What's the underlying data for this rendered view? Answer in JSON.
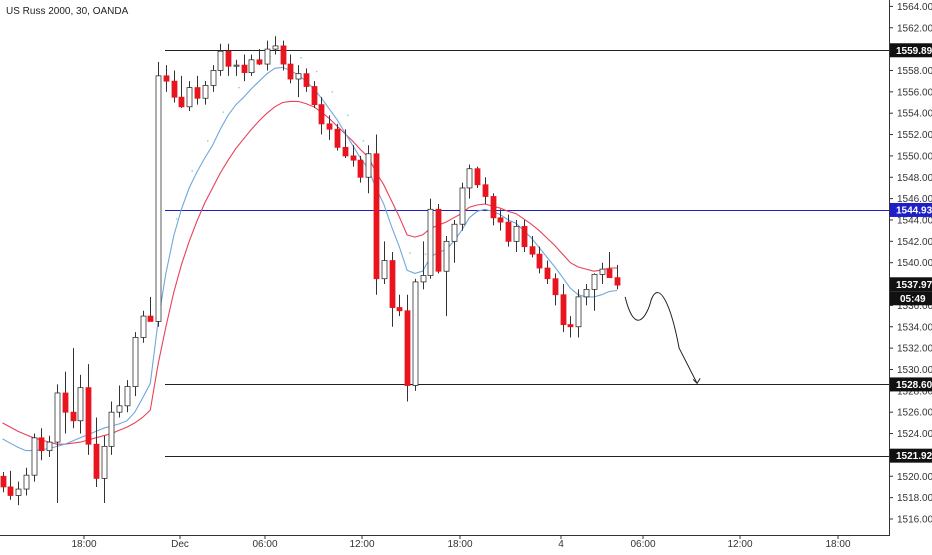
{
  "chart_data": {
    "type": "candlestick",
    "title": "US Russ 2000, 30, OANDA",
    "symbol": "US Russ 2000",
    "timeframe": "30",
    "source": "OANDA",
    "ylim": [
      1514.5,
      1564.6
    ],
    "y_ticks": [
      "1516.000",
      "1518.000",
      "1520.000",
      "1522.000",
      "1524.000",
      "1526.000",
      "1528.000",
      "1530.000",
      "1532.000",
      "1534.000",
      "1536.000",
      "1538.000",
      "1540.000",
      "1542.000",
      "1544.000",
      "1546.000",
      "1548.000",
      "1550.000",
      "1552.000",
      "1554.000",
      "1556.000",
      "1558.000",
      "1560.000",
      "1562.000",
      "1564.000"
    ],
    "x_ticks": [
      "18:00",
      "Dec",
      "06:00",
      "12:00",
      "18:00",
      "4",
      "06:00",
      "12:00",
      "18:00"
    ],
    "horizontal_levels": [
      {
        "price": 1559.893,
        "label": "1559.893",
        "color": "#222222"
      },
      {
        "price": 1544.938,
        "label": "1544.938",
        "color": "#1f1fc8"
      },
      {
        "price": 1528.601,
        "label": "1528.601",
        "color": "#222222"
      },
      {
        "price": 1521.929,
        "label": "1521.929",
        "color": "#222222"
      }
    ],
    "last_price": {
      "label": "1537.978",
      "price": 1537.978
    },
    "countdown": "05:49",
    "colors": {
      "up_body": "#ffffff",
      "down_body": "#e8141e",
      "wick": "#333333",
      "ma_fast": "#6fa8dc",
      "ma_slow": "#e8415a",
      "ma_dots": "#7fd6b8",
      "blue_level": "#1f1fc8",
      "label_bg": "#111111"
    },
    "candles": [
      [
        1520.0,
        1520.4,
        1518.5,
        1519.0
      ],
      [
        1519.0,
        1520.5,
        1517.8,
        1518.2
      ],
      [
        1518.2,
        1519.5,
        1517.3,
        1518.8
      ],
      [
        1518.8,
        1520.8,
        1518.2,
        1520.1
      ],
      [
        1520.1,
        1524.0,
        1519.5,
        1523.6
      ],
      [
        1523.6,
        1524.5,
        1521.5,
        1522.4
      ],
      [
        1522.4,
        1523.8,
        1521.8,
        1523.2
      ],
      [
        1523.2,
        1528.6,
        1517.5,
        1527.8
      ],
      [
        1527.8,
        1529.8,
        1524.0,
        1526.0
      ],
      [
        1526.0,
        1532.0,
        1524.5,
        1525.2
      ],
      [
        1525.2,
        1529.5,
        1524.0,
        1528.3
      ],
      [
        1528.3,
        1530.5,
        1522.0,
        1523.0
      ],
      [
        1523.0,
        1525.5,
        1519.0,
        1519.8
      ],
      [
        1519.8,
        1523.8,
        1517.5,
        1522.8
      ],
      [
        1522.8,
        1527.0,
        1522.0,
        1526.0
      ],
      [
        1526.0,
        1528.5,
        1525.5,
        1526.6
      ],
      [
        1526.6,
        1529.0,
        1526.0,
        1528.4
      ],
      [
        1528.4,
        1533.5,
        1527.5,
        1533.0
      ],
      [
        1533.0,
        1535.5,
        1532.5,
        1535.0
      ],
      [
        1535.0,
        1536.8,
        1534.5,
        1534.5
      ],
      [
        1534.5,
        1558.8,
        1534.0,
        1557.5
      ],
      [
        1557.5,
        1558.5,
        1556.0,
        1557.0
      ],
      [
        1557.0,
        1558.0,
        1555.0,
        1555.5
      ],
      [
        1555.5,
        1557.5,
        1554.5,
        1554.6
      ],
      [
        1554.6,
        1557.0,
        1554.2,
        1556.4
      ],
      [
        1556.4,
        1557.5,
        1554.8,
        1555.4
      ],
      [
        1555.4,
        1557.0,
        1554.8,
        1556.6
      ],
      [
        1556.6,
        1558.5,
        1556.0,
        1558.0
      ],
      [
        1558.0,
        1560.5,
        1557.5,
        1559.8
      ],
      [
        1559.8,
        1560.5,
        1557.5,
        1558.4
      ],
      [
        1558.4,
        1559.0,
        1557.5,
        1558.5
      ],
      [
        1558.5,
        1559.5,
        1557.0,
        1557.8
      ],
      [
        1557.8,
        1559.5,
        1557.5,
        1559.0
      ],
      [
        1559.0,
        1560.0,
        1558.5,
        1558.6
      ],
      [
        1558.6,
        1560.8,
        1558.0,
        1560.0
      ],
      [
        1560.0,
        1561.2,
        1559.5,
        1560.3
      ],
      [
        1560.3,
        1560.8,
        1558.0,
        1558.6
      ],
      [
        1558.6,
        1559.5,
        1556.8,
        1557.2
      ],
      [
        1557.2,
        1558.5,
        1555.5,
        1557.7
      ],
      [
        1557.7,
        1558.2,
        1556.0,
        1556.5
      ],
      [
        1556.5,
        1557.0,
        1554.5,
        1554.8
      ],
      [
        1554.8,
        1555.5,
        1552.0,
        1553.0
      ],
      [
        1553.0,
        1553.8,
        1551.5,
        1552.5
      ],
      [
        1552.5,
        1553.0,
        1550.5,
        1550.8
      ],
      [
        1550.8,
        1552.5,
        1549.8,
        1550.0
      ],
      [
        1550.0,
        1551.0,
        1549.0,
        1549.6
      ],
      [
        1549.6,
        1550.0,
        1547.5,
        1548.0
      ],
      [
        1548.0,
        1551.0,
        1546.5,
        1550.2
      ],
      [
        1550.2,
        1552.0,
        1537.0,
        1538.5
      ],
      [
        1538.5,
        1542.0,
        1538.0,
        1540.2
      ],
      [
        1540.2,
        1541.0,
        1534.0,
        1535.8
      ],
      [
        1535.8,
        1537.0,
        1535.0,
        1535.5
      ],
      [
        1535.5,
        1537.0,
        1527.0,
        1528.5
      ],
      [
        1528.5,
        1538.5,
        1528.0,
        1538.2
      ],
      [
        1538.2,
        1542.0,
        1537.5,
        1538.8
      ],
      [
        1538.8,
        1546.0,
        1538.5,
        1545.0
      ],
      [
        1545.0,
        1545.5,
        1539.0,
        1539.2
      ],
      [
        1539.2,
        1542.5,
        1535.0,
        1542.0
      ],
      [
        1542.0,
        1544.0,
        1540.0,
        1543.6
      ],
      [
        1543.6,
        1547.5,
        1543.0,
        1547.0
      ],
      [
        1547.0,
        1549.2,
        1546.0,
        1548.8
      ],
      [
        1548.8,
        1549.0,
        1547.0,
        1547.3
      ],
      [
        1547.3,
        1548.0,
        1545.5,
        1546.2
      ],
      [
        1546.2,
        1546.5,
        1543.5,
        1544.2
      ],
      [
        1544.2,
        1545.0,
        1543.0,
        1543.8
      ],
      [
        1543.8,
        1544.5,
        1541.5,
        1542.0
      ],
      [
        1542.0,
        1544.0,
        1541.0,
        1543.4
      ],
      [
        1543.4,
        1544.0,
        1541.0,
        1541.5
      ],
      [
        1541.5,
        1542.5,
        1540.5,
        1540.8
      ],
      [
        1540.8,
        1541.5,
        1539.0,
        1539.5
      ],
      [
        1539.5,
        1540.2,
        1538.0,
        1538.5
      ],
      [
        1538.5,
        1539.0,
        1536.0,
        1537.0
      ],
      [
        1537.0,
        1538.0,
        1533.5,
        1534.2
      ],
      [
        1534.2,
        1535.0,
        1533.0,
        1534.0
      ],
      [
        1534.0,
        1537.5,
        1533.0,
        1536.8
      ],
      [
        1536.8,
        1538.0,
        1536.0,
        1537.5
      ],
      [
        1537.5,
        1539.0,
        1535.5,
        1538.9
      ],
      [
        1538.9,
        1540.0,
        1538.0,
        1539.4
      ],
      [
        1539.4,
        1541.0,
        1538.8,
        1538.6
      ],
      [
        1538.6,
        1539.8,
        1537.5,
        1537.9
      ]
    ],
    "ma_fast": [
      1523.5,
      1523.1,
      1522.7,
      1522.4,
      1522.4,
      1522.5,
      1522.6,
      1522.8,
      1523.0,
      1523.3,
      1523.6,
      1523.9,
      1524.2,
      1524.5,
      1524.7,
      1524.9,
      1525.2,
      1526.0,
      1527.3,
      1528.7,
      1534.5,
      1539.0,
      1542.5,
      1545.0,
      1547.0,
      1548.5,
      1549.8,
      1551.0,
      1552.5,
      1553.8,
      1554.8,
      1555.5,
      1556.3,
      1557.0,
      1557.7,
      1558.2,
      1558.3,
      1558.0,
      1557.6,
      1557.0,
      1556.3,
      1555.4,
      1554.4,
      1553.4,
      1552.2,
      1551.0,
      1549.8,
      1548.8,
      1547.0,
      1545.5,
      1543.4,
      1541.5,
      1539.3,
      1539.0,
      1539.2,
      1540.5,
      1541.0,
      1541.2,
      1542.0,
      1543.0,
      1544.2,
      1544.8,
      1545.0,
      1544.8,
      1544.5,
      1544.0,
      1543.7,
      1543.0,
      1542.3,
      1541.4,
      1540.5,
      1539.6,
      1538.6,
      1537.6,
      1537.0,
      1536.8,
      1536.8,
      1537.0,
      1537.3,
      1537.4
    ],
    "ma_slow": [
      1525.0,
      1524.6,
      1524.2,
      1523.9,
      1523.6,
      1523.4,
      1523.2,
      1523.0,
      1523.0,
      1523.1,
      1523.2,
      1523.4,
      1523.6,
      1523.8,
      1524.0,
      1524.3,
      1524.6,
      1525.0,
      1525.5,
      1526.2,
      1530.5,
      1534.0,
      1537.2,
      1539.8,
      1542.0,
      1543.9,
      1545.6,
      1547.0,
      1548.4,
      1549.6,
      1550.7,
      1551.6,
      1552.5,
      1553.3,
      1554.0,
      1554.6,
      1555.0,
      1555.1,
      1555.1,
      1554.9,
      1554.6,
      1554.1,
      1553.5,
      1552.8,
      1552.1,
      1551.4,
      1550.6,
      1549.9,
      1548.5,
      1547.3,
      1545.8,
      1544.3,
      1542.6,
      1542.4,
      1542.6,
      1543.2,
      1543.5,
      1543.8,
      1544.2,
      1544.6,
      1545.2,
      1545.4,
      1545.5,
      1545.3,
      1545.1,
      1544.8,
      1544.6,
      1544.1,
      1543.6,
      1543.0,
      1542.3,
      1541.6,
      1540.8,
      1540.0,
      1539.6,
      1539.4,
      1539.2,
      1539.3,
      1539.5,
      1539.5
    ]
  }
}
